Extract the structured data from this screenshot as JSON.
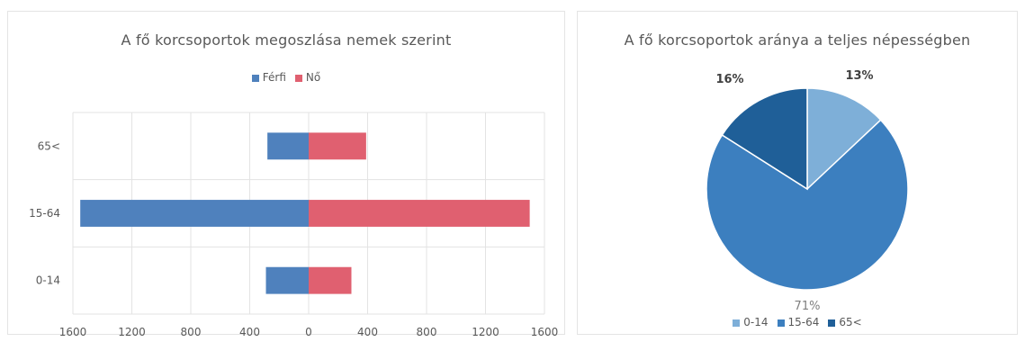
{
  "chart_data": [
    {
      "type": "bar",
      "orientation": "horizontal",
      "title": "A fő korcsoportok megoszlása nemek szerint",
      "categories": [
        "65<",
        "15-64",
        "0-14"
      ],
      "series": [
        {
          "name": "Férfi",
          "color": "#4f81bd",
          "values": [
            -280,
            -1550,
            -290
          ]
        },
        {
          "name": "Nő",
          "color": "#e06070",
          "values": [
            390,
            1500,
            290
          ]
        }
      ],
      "xlim": [
        -1600,
        1600
      ],
      "x_ticks": [
        -1600,
        -1200,
        -800,
        -400,
        0,
        400,
        800,
        1200,
        1600
      ],
      "x_tick_labels": [
        "1600",
        "1200",
        "800",
        "400",
        "0",
        "400",
        "800",
        "1200",
        "1600"
      ],
      "legend_position": "top",
      "grid": true,
      "stacked": true
    },
    {
      "type": "pie",
      "title": "A fő korcsoportok aránya a teljes népességben",
      "categories": [
        "0-14",
        "15-64",
        "65<"
      ],
      "values": [
        13,
        71,
        16
      ],
      "data_labels": [
        "13%",
        "71%",
        "16%"
      ],
      "colors": [
        "#7eafd8",
        "#3c7fbf",
        "#1f5f98"
      ],
      "legend_position": "bottom"
    }
  ]
}
